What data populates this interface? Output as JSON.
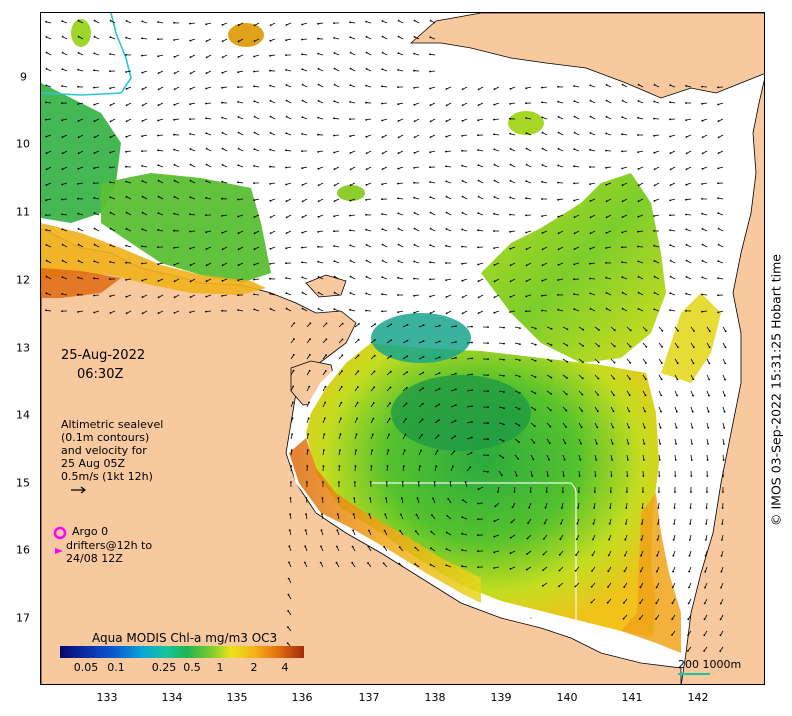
{
  "map": {
    "date_text": "25-Aug-2022",
    "time_text": "06:30Z",
    "altimetry_lines": [
      "Altimetric sealevel",
      "(0.1m contours)",
      "and velocity for",
      "25 Aug 05Z",
      "0.5m/s (1kt 12h)"
    ],
    "argo_lines": [
      "Argo 0",
      "drifters@12h to",
      "24/08 12Z"
    ],
    "colorbar": {
      "title": "Aqua MODIS Chl-a mg/m3 OC3",
      "ticks": [
        "0.05",
        "0.1",
        "0.25",
        "0.5",
        "1",
        "2",
        "4"
      ]
    },
    "scale_text": "200  1000m",
    "copyright": "© IMOS 03-Sep-2022 15:31:25 Hobart time",
    "x_ticks": [
      "133",
      "134",
      "135",
      "136",
      "137",
      "138",
      "139",
      "140",
      "141",
      "142"
    ],
    "y_ticks": [
      "9",
      "10",
      "11",
      "12",
      "13",
      "14",
      "15",
      "16",
      "17"
    ],
    "colors": {
      "land": "#f8c89e",
      "coast": "#000000",
      "shelf_edge_contour": "#ffffff",
      "boundary_line": "#29c6d6",
      "argo_marker": "#ff00ff",
      "scale_line": "#19c49c"
    }
  }
}
